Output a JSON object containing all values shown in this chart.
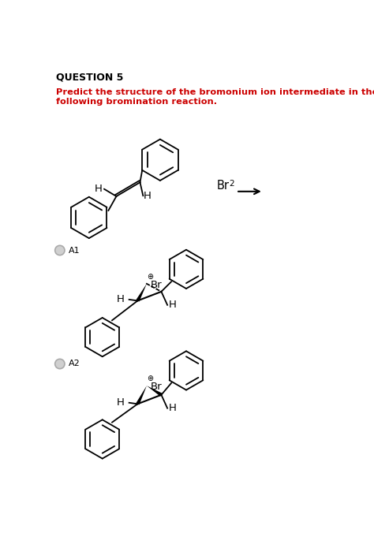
{
  "title": "QUESTION 5",
  "question_text_line1": "Predict the structure of the bromonium ion intermediate in the",
  "question_text_line2": "following bromination reaction.",
  "bg_color": "#ffffff",
  "title_color": "#000000",
  "question_color": "#cc0000",
  "label_A1": "A1",
  "label_A2": "A2",
  "fig_width": 4.74,
  "fig_height": 6.76,
  "dpi": 100
}
